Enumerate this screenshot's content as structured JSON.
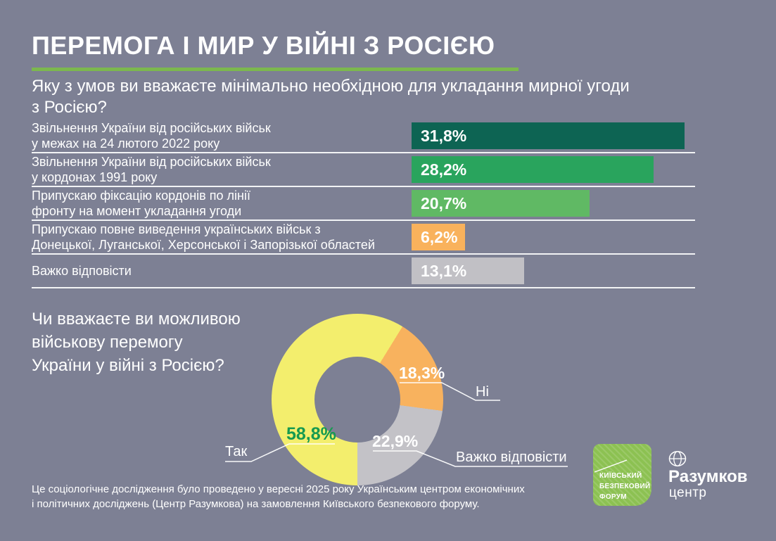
{
  "page": {
    "title": "ПЕРЕМОГА І МИР У ВІЙНІ З РОСІЄЮ",
    "background_color": "#7d8094",
    "accent_green": "#7cb84e",
    "divider_color": "#ffffff"
  },
  "footnote": "Це соціологічне дослідження було проведено у вересні 2025 року Українським центром економічних\nі політичних досліджень (Центр Разумкова) на замовлення Київського безпекового форуму.",
  "logos": {
    "kbf": {
      "text": "КИЇВСЬКИЙ\nБЕЗПЕКОВИЙ\nФОРУМ",
      "color": "#8cc152"
    },
    "razumkov": {
      "name": "Разумков",
      "sub": "центр"
    }
  },
  "chart_data": [
    {
      "type": "bar",
      "orientation": "horizontal",
      "title": "Яку з умов ви вважаєте мінімально необхідною для укладання мирної угоди\nз Росією?",
      "categories": [
        "Звільнення України від російських військ\nу межах на 24 лютого 2022 року",
        "Звільнення України від російських військ\nу кордонах 1991 року",
        "Припускаю фіксацію кордонів по лінії\nфронту на момент укладання угоди",
        "Припускаю повне виведення українських військ з\nДонецької, Луганської, Херсонської і Запорізької областей",
        "Важко відповісти"
      ],
      "values": [
        31.8,
        28.2,
        20.7,
        6.2,
        13.1
      ],
      "value_labels": [
        "31,8%",
        "28,2%",
        "20,7%",
        "6,2%",
        "13,1%"
      ],
      "colors": [
        "#0d6453",
        "#29a45d",
        "#60b964",
        "#f9b25c",
        "#c1c0c5"
      ],
      "xlim": [
        0,
        33
      ],
      "grid": false,
      "legend": "none"
    },
    {
      "type": "pie",
      "subtype": "donut",
      "title": "Чи вважаєте ви можливою\nвійськову перемогу\nУкраїни у війні з Росією?",
      "rotation_deg": 180,
      "slices": [
        {
          "label": "Так",
          "value": 58.8,
          "display": "58,8%",
          "color": "#f3ee6d",
          "label_color": "#169a50"
        },
        {
          "label": "Ні",
          "value": 18.3,
          "display": "18,3%",
          "color": "#f8b25e",
          "label_color": "#ffffff"
        },
        {
          "label": "Важко відповісти",
          "value": 22.9,
          "display": "22,9%",
          "color": "#c3c2c7",
          "label_color": "#ffffff"
        }
      ]
    }
  ]
}
